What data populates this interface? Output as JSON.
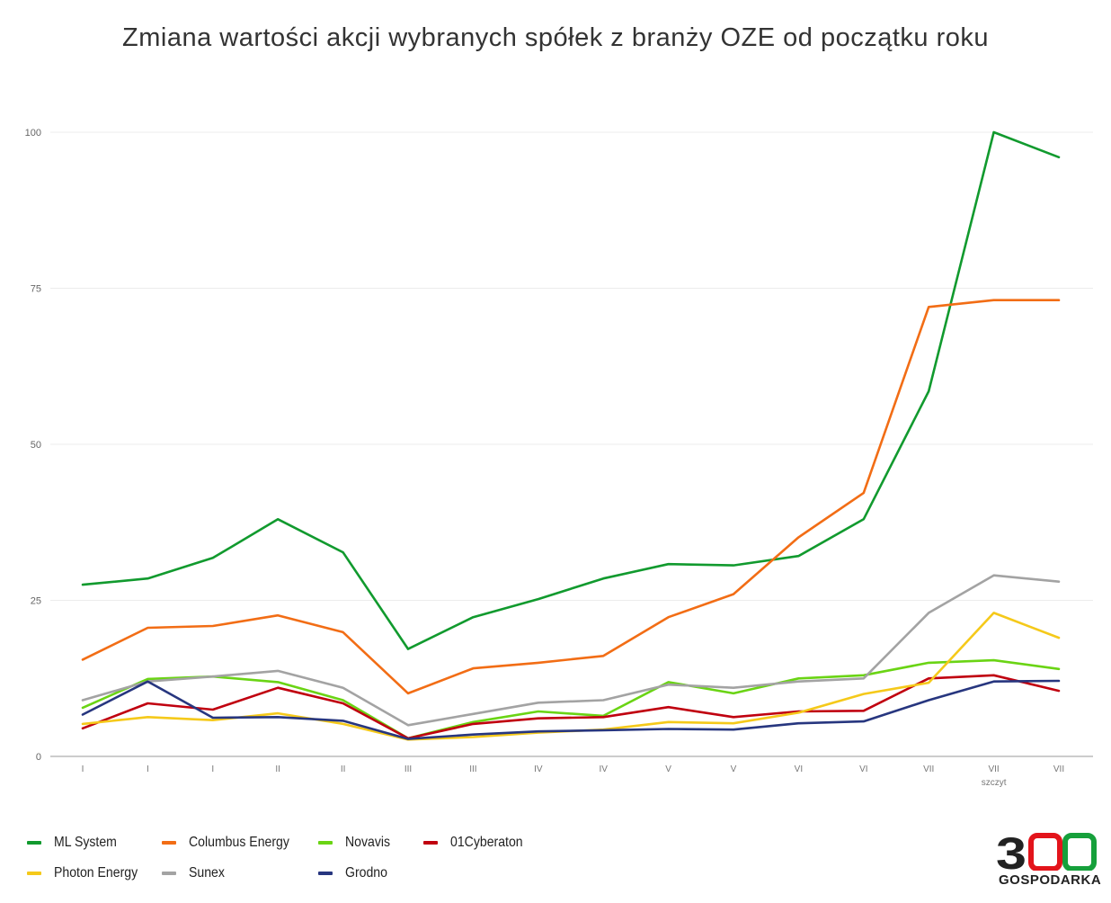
{
  "chart_data": {
    "type": "line",
    "title": "Zmiana wartości akcji wybranych spółek z branży OZE od początku roku",
    "xlabel": "",
    "ylabel": "",
    "ylim": [
      0,
      100
    ],
    "yticks": [
      0,
      25,
      50,
      75,
      100
    ],
    "categories": [
      "I",
      "I",
      "I",
      "II",
      "II",
      "III",
      "III",
      "IV",
      "IV",
      "V",
      "V",
      "VI",
      "VI",
      "VII",
      "VII",
      "VII"
    ],
    "annotations": [
      {
        "index": 14,
        "text": "szczyt"
      }
    ],
    "grid": true,
    "legend_position": "bottom-left",
    "series": [
      {
        "name": "ML System",
        "color": "#119a2e",
        "values": [
          27.5,
          28.5,
          31.8,
          38,
          32.7,
          17.2,
          22.3,
          25.2,
          28.5,
          30.8,
          30.6,
          32.1,
          38,
          58.5,
          100,
          96
        ]
      },
      {
        "name": "Columbus Energy",
        "color": "#f26d15",
        "values": [
          15.5,
          20.6,
          20.9,
          22.6,
          19.9,
          10.1,
          14.1,
          15,
          16.1,
          22.3,
          26,
          35.1,
          42.2,
          72,
          73.1,
          73.1
        ]
      },
      {
        "name": "Novavis",
        "color": "#6ad414",
        "values": [
          7.8,
          12.4,
          12.8,
          11.9,
          9,
          2.9,
          5.5,
          7.2,
          6.5,
          11.9,
          10.1,
          12.5,
          13,
          15,
          15.4,
          14
        ]
      },
      {
        "name": "01Cyberaton",
        "color": "#c0000f",
        "values": [
          4.5,
          8.5,
          7.5,
          11,
          8.5,
          2.9,
          5.2,
          6.1,
          6.3,
          7.9,
          6.3,
          7.2,
          7.3,
          12.5,
          13,
          10.5
        ]
      },
      {
        "name": "Photon Energy",
        "color": "#f5c91a",
        "values": [
          5.2,
          6.3,
          5.8,
          6.9,
          5.2,
          2.7,
          3.1,
          3.8,
          4.3,
          5.5,
          5.3,
          7,
          10,
          11.8,
          23,
          19
        ]
      },
      {
        "name": "Sunex",
        "color": "#a3a3a3",
        "values": [
          9,
          12,
          12.8,
          13.7,
          11,
          5,
          6.8,
          8.6,
          9,
          11.5,
          11,
          12,
          12.5,
          23,
          29,
          28
        ]
      },
      {
        "name": "Grodno",
        "color": "#27367f",
        "values": [
          6.7,
          12,
          6.2,
          6.3,
          5.7,
          2.8,
          3.5,
          4,
          4.2,
          4.4,
          4.3,
          5.3,
          5.6,
          9,
          12,
          12.1
        ]
      }
    ]
  },
  "logo": {
    "number": "300",
    "text": "GOSPODARKA"
  }
}
